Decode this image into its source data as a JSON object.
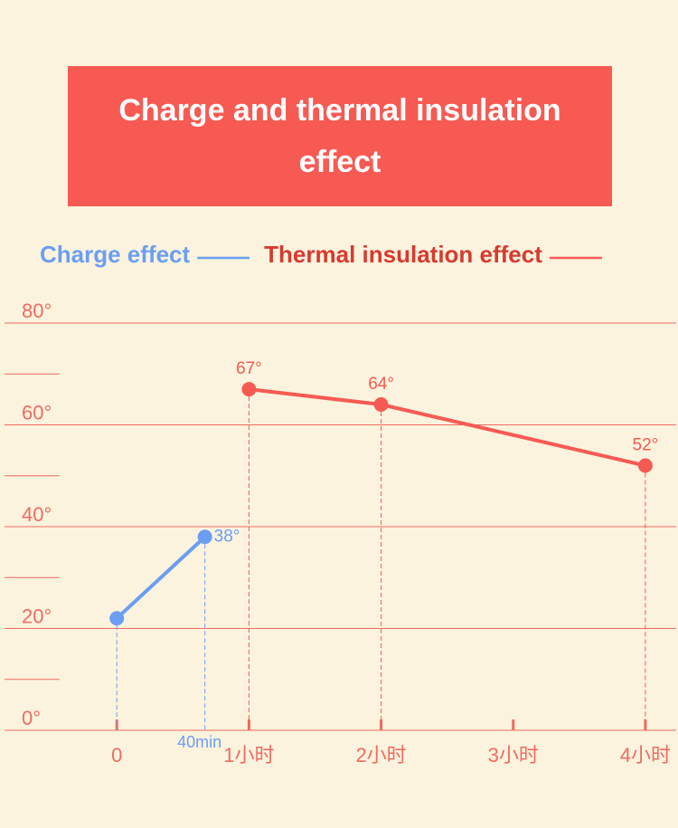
{
  "chart_data": {
    "type": "line",
    "title": "Charge and thermal insulation effect",
    "title_color": "#f75a53",
    "xlim": [
      -51,
      254
    ],
    "xticks": [
      {
        "value": 0,
        "label": "0"
      },
      {
        "value": 60,
        "label": "1小时"
      },
      {
        "value": 120,
        "label": "2小时"
      },
      {
        "value": 180,
        "label": "3小时"
      },
      {
        "value": 240,
        "label": "4小时"
      }
    ],
    "ylim": [
      0,
      80
    ],
    "yticks": [
      {
        "value": 0,
        "label": "0°"
      },
      {
        "value": 20,
        "label": "20°"
      },
      {
        "value": 40,
        "label": "40°"
      },
      {
        "value": 60,
        "label": "60°"
      },
      {
        "value": 80,
        "label": "80°"
      }
    ],
    "minor_yticks": [
      10,
      30,
      50,
      70
    ],
    "grid": true,
    "series": [
      {
        "name": "Charge effect",
        "color": "#6b9ef3",
        "x": [
          0,
          40
        ],
        "values": [
          22,
          38
        ],
        "value_labels": [
          null,
          "38°"
        ],
        "x_labels": [
          null,
          "40min"
        ]
      },
      {
        "name": "Thermal insulation effect",
        "color": "#f75a53",
        "x": [
          60,
          120,
          240
        ],
        "values": [
          67,
          64,
          52
        ],
        "value_labels": [
          "67°",
          "64°",
          "52°"
        ]
      }
    ]
  }
}
